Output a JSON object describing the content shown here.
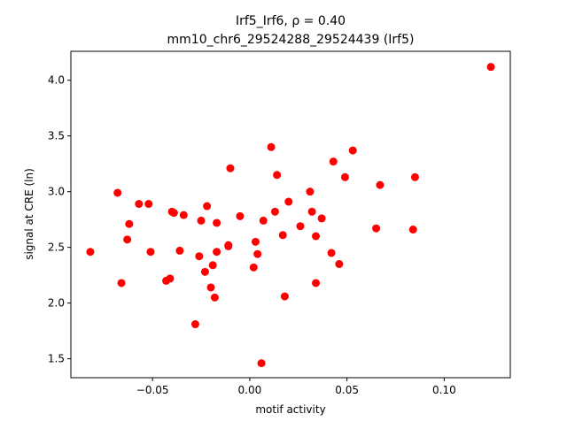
{
  "chart_data": {
    "type": "scatter",
    "title_line1": "Irf5_Irf6, ρ = 0.40",
    "title_line2": "mm10_chr6_29524288_29524439 (Irf5)",
    "xlabel": "motif activity",
    "ylabel": "signal at CRE (ln)",
    "xlim": [
      -0.092,
      0.134
    ],
    "ylim": [
      1.33,
      4.26
    ],
    "x_ticks": [
      {
        "value": -0.05,
        "label": "−0.05"
      },
      {
        "value": 0.0,
        "label": "0.00"
      },
      {
        "value": 0.05,
        "label": "0.05"
      },
      {
        "value": 0.1,
        "label": "0.10"
      }
    ],
    "y_ticks": [
      {
        "value": 1.5,
        "label": "1.5"
      },
      {
        "value": 2.0,
        "label": "2.0"
      },
      {
        "value": 2.5,
        "label": "2.5"
      },
      {
        "value": 3.0,
        "label": "3.0"
      },
      {
        "value": 3.5,
        "label": "3.5"
      },
      {
        "value": 4.0,
        "label": "4.0"
      }
    ],
    "grid": false,
    "marker_color": "#ff0000",
    "points": [
      {
        "x": -0.082,
        "y": 2.46
      },
      {
        "x": -0.068,
        "y": 2.99
      },
      {
        "x": -0.066,
        "y": 2.18
      },
      {
        "x": -0.063,
        "y": 2.57
      },
      {
        "x": -0.062,
        "y": 2.71
      },
      {
        "x": -0.057,
        "y": 2.89
      },
      {
        "x": -0.052,
        "y": 2.89
      },
      {
        "x": -0.051,
        "y": 2.46
      },
      {
        "x": -0.043,
        "y": 2.2
      },
      {
        "x": -0.041,
        "y": 2.22
      },
      {
        "x": -0.04,
        "y": 2.82
      },
      {
        "x": -0.039,
        "y": 2.81
      },
      {
        "x": -0.036,
        "y": 2.47
      },
      {
        "x": -0.034,
        "y": 2.79
      },
      {
        "x": -0.028,
        "y": 1.81
      },
      {
        "x": -0.026,
        "y": 2.42
      },
      {
        "x": -0.025,
        "y": 2.74
      },
      {
        "x": -0.023,
        "y": 2.28
      },
      {
        "x": -0.022,
        "y": 2.87
      },
      {
        "x": -0.02,
        "y": 2.14
      },
      {
        "x": -0.019,
        "y": 2.34
      },
      {
        "x": -0.018,
        "y": 2.05
      },
      {
        "x": -0.017,
        "y": 2.46
      },
      {
        "x": -0.017,
        "y": 2.72
      },
      {
        "x": -0.011,
        "y": 2.51
      },
      {
        "x": -0.011,
        "y": 2.52
      },
      {
        "x": -0.01,
        "y": 3.21
      },
      {
        "x": -0.005,
        "y": 2.78
      },
      {
        "x": 0.002,
        "y": 2.32
      },
      {
        "x": 0.003,
        "y": 2.55
      },
      {
        "x": 0.004,
        "y": 2.44
      },
      {
        "x": 0.006,
        "y": 1.46
      },
      {
        "x": 0.007,
        "y": 2.74
      },
      {
        "x": 0.011,
        "y": 3.4
      },
      {
        "x": 0.013,
        "y": 2.82
      },
      {
        "x": 0.014,
        "y": 3.15
      },
      {
        "x": 0.017,
        "y": 2.61
      },
      {
        "x": 0.018,
        "y": 2.06
      },
      {
        "x": 0.02,
        "y": 2.91
      },
      {
        "x": 0.026,
        "y": 2.69
      },
      {
        "x": 0.031,
        "y": 3.0
      },
      {
        "x": 0.032,
        "y": 2.82
      },
      {
        "x": 0.034,
        "y": 2.18
      },
      {
        "x": 0.034,
        "y": 2.6
      },
      {
        "x": 0.037,
        "y": 2.76
      },
      {
        "x": 0.042,
        "y": 2.45
      },
      {
        "x": 0.043,
        "y": 3.27
      },
      {
        "x": 0.046,
        "y": 2.35
      },
      {
        "x": 0.049,
        "y": 3.13
      },
      {
        "x": 0.053,
        "y": 3.37
      },
      {
        "x": 0.065,
        "y": 2.67
      },
      {
        "x": 0.067,
        "y": 3.06
      },
      {
        "x": 0.084,
        "y": 2.66
      },
      {
        "x": 0.085,
        "y": 3.13
      },
      {
        "x": 0.124,
        "y": 4.12
      }
    ]
  }
}
